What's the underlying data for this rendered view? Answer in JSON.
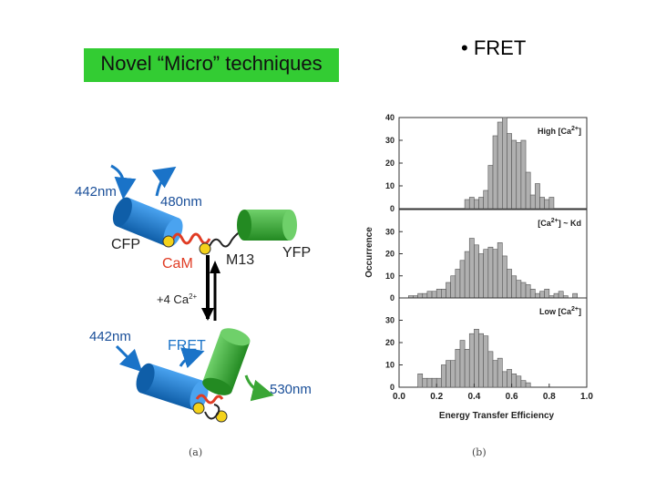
{
  "slide": {
    "title": "Novel “Micro” techniques",
    "bullet": "• FRET",
    "caption_a": "(a)",
    "caption_b": "(b)"
  },
  "colors": {
    "title_bg": "#33cc33",
    "cfp": "#1a73c8",
    "yfp": "#3aa635",
    "cam": "#e03c24",
    "bar": "#b0b0b0"
  },
  "diagram": {
    "top_state": {
      "excite": "442nm",
      "emit": "480nm",
      "cfp": "CFP",
      "yfp": "YFP",
      "cam": "CaM",
      "m13": "M13"
    },
    "transition": "+4 Ca",
    "transition_sup": "2+",
    "bottom_state": {
      "excite": "442nm",
      "fret": "FRET",
      "emit": "530nm"
    }
  },
  "chart_data": {
    "type": "bar",
    "title": "",
    "xlabel": "Energy Transfer Efficiency",
    "ylabel": "Occurrence",
    "xlim": [
      0.0,
      1.0
    ],
    "x_ticks": [
      "0.0",
      "0.2",
      "0.4",
      "0.6",
      "0.8",
      "1.0"
    ],
    "bin_width": 0.025,
    "panels": [
      {
        "label": "High [Ca",
        "label_sup": "2+",
        "label_end": "]",
        "ylim": [
          0,
          40
        ],
        "y_ticks": [
          "0",
          "10",
          "20",
          "30",
          "40"
        ],
        "bins": [
          0.35,
          0.375,
          0.4,
          0.425,
          0.45,
          0.475,
          0.5,
          0.525,
          0.55,
          0.575,
          0.6,
          0.625,
          0.65,
          0.675,
          0.7,
          0.725,
          0.75,
          0.775,
          0.8
        ],
        "values": [
          4,
          5,
          4,
          5,
          8,
          19,
          32,
          38,
          40,
          33,
          30,
          29,
          30,
          16,
          6,
          11,
          5,
          4,
          5
        ]
      },
      {
        "label": "[Ca",
        "label_sup": "2+",
        "label_end": "] ~ Kd",
        "ylim": [
          0,
          40
        ],
        "y_ticks": [
          "0",
          "10",
          "20",
          "30"
        ],
        "bins": [
          0.05,
          0.075,
          0.1,
          0.125,
          0.15,
          0.175,
          0.2,
          0.225,
          0.25,
          0.275,
          0.3,
          0.325,
          0.35,
          0.375,
          0.4,
          0.425,
          0.45,
          0.475,
          0.5,
          0.525,
          0.55,
          0.575,
          0.6,
          0.625,
          0.65,
          0.675,
          0.7,
          0.725,
          0.75,
          0.775,
          0.8,
          0.825,
          0.85,
          0.875,
          0.9,
          0.925
        ],
        "values": [
          1,
          1,
          2,
          2,
          3,
          3,
          4,
          4,
          7,
          10,
          13,
          17,
          21,
          27,
          24,
          20,
          22,
          23,
          22,
          25,
          19,
          13,
          10,
          8,
          7,
          6,
          4,
          2,
          3,
          4,
          1,
          2,
          3,
          1,
          0,
          2
        ]
      },
      {
        "label": "Low [Ca",
        "label_sup": "2+",
        "label_end": "]",
        "ylim": [
          0,
          40
        ],
        "y_ticks": [
          "0",
          "10",
          "20",
          "30"
        ],
        "bins": [
          0.1,
          0.125,
          0.15,
          0.175,
          0.2,
          0.225,
          0.25,
          0.275,
          0.3,
          0.325,
          0.35,
          0.375,
          0.4,
          0.425,
          0.45,
          0.475,
          0.5,
          0.525,
          0.55,
          0.575,
          0.6,
          0.625,
          0.65,
          0.675
        ],
        "values": [
          6,
          4,
          4,
          4,
          4,
          10,
          12,
          12,
          17,
          21,
          17,
          24,
          26,
          24,
          23,
          16,
          12,
          13,
          7,
          8,
          6,
          5,
          3,
          2
        ]
      }
    ]
  }
}
